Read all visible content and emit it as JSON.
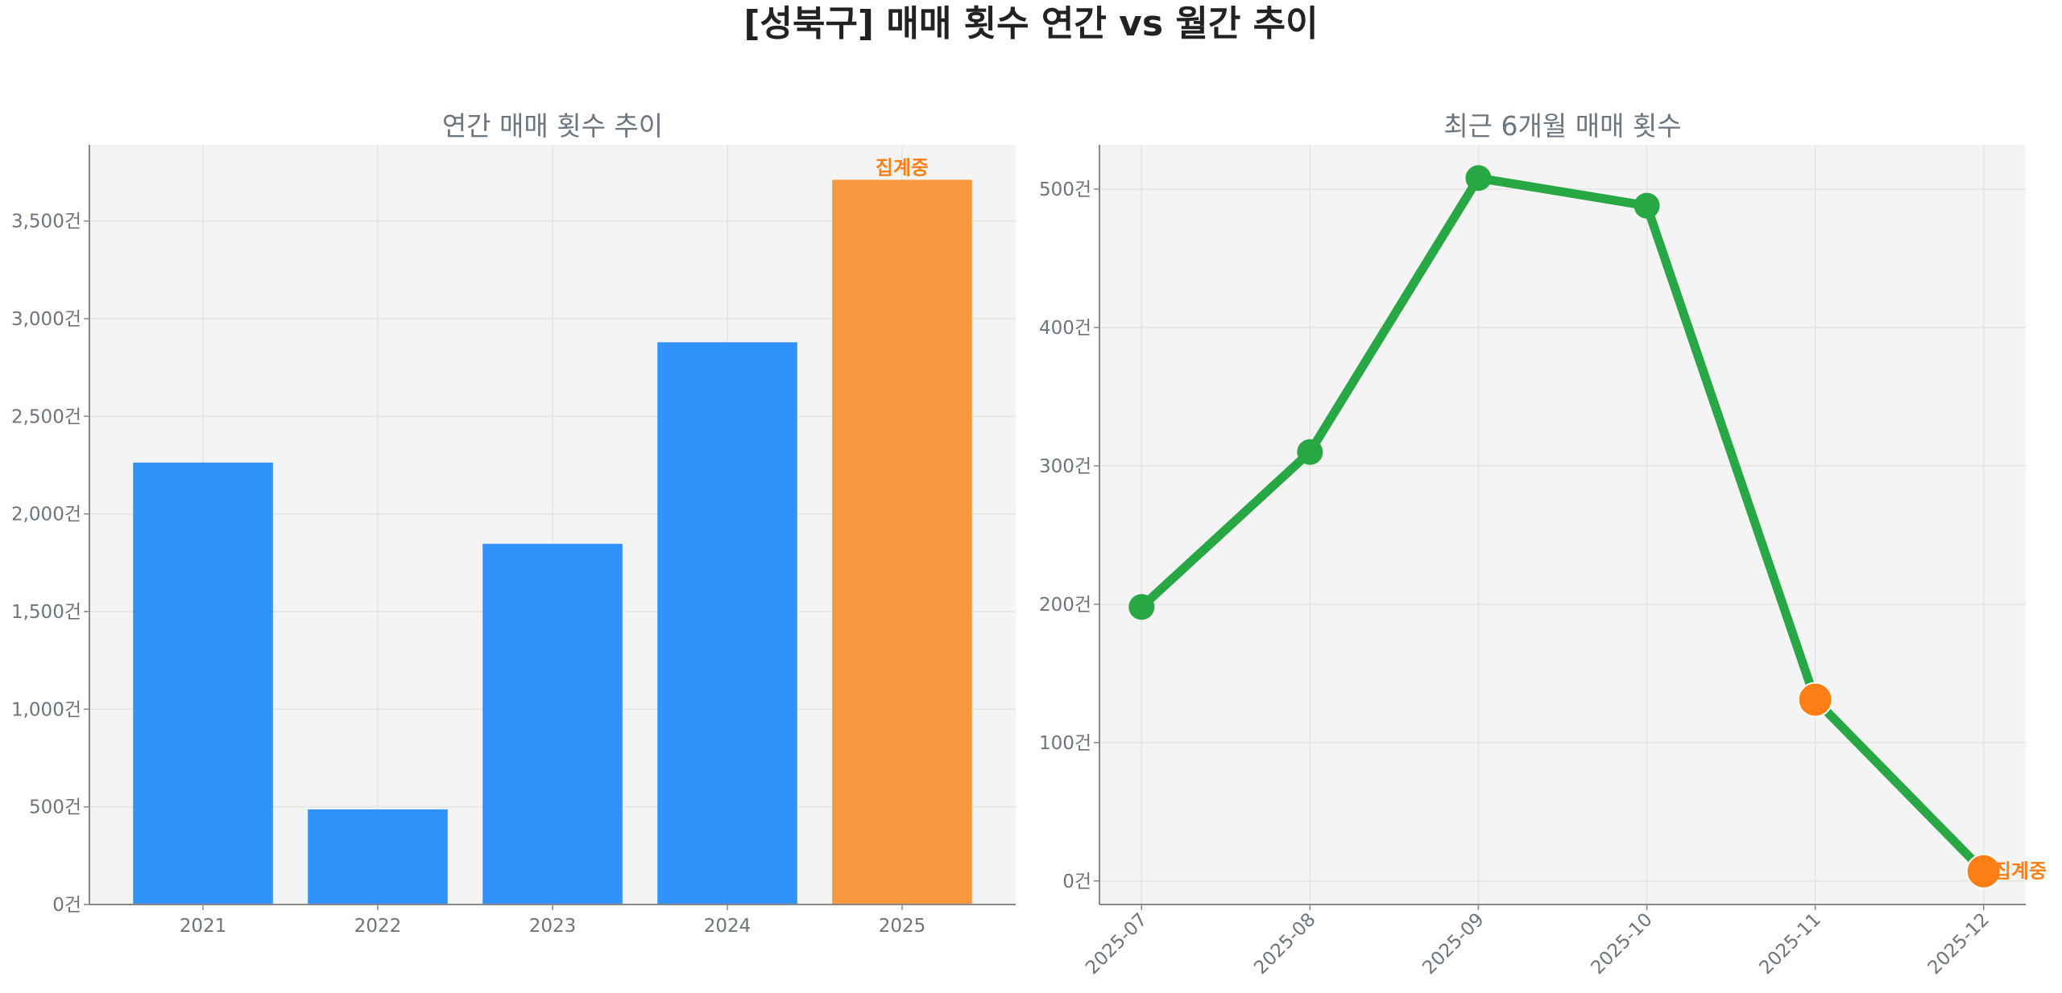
{
  "title": "[성북구] 매매 횟수 연간 vs 월간 추이",
  "chart_data": [
    {
      "type": "bar",
      "title": "연간 매매 횟수 추이",
      "categories": [
        "2021",
        "2022",
        "2023",
        "2024",
        "2025"
      ],
      "values": [
        2263,
        487,
        1847,
        2879,
        3711
      ],
      "colors": [
        "#3093fa",
        "#3093fa",
        "#3093fa",
        "#3093fa",
        "#f9973f"
      ],
      "annotations": [
        {
          "category": "2025",
          "text": "집계중",
          "color": "#fd7e14"
        }
      ],
      "ylim": [
        0,
        3890
      ],
      "yticks": [
        0,
        500,
        1000,
        1500,
        2000,
        2500,
        3000,
        3500
      ],
      "ytick_labels": [
        "0건",
        "500건",
        "1,000건",
        "1,500건",
        "2,000건",
        "2,500건",
        "3,000건",
        "3,500건"
      ],
      "grid": true,
      "xlabel": "",
      "ylabel": ""
    },
    {
      "type": "line",
      "title": "최근 6개월 매매 횟수",
      "categories": [
        "2025-07",
        "2025-08",
        "2025-09",
        "2025-10",
        "2025-11",
        "2025-12"
      ],
      "values": [
        198,
        310,
        508,
        488,
        131,
        7
      ],
      "line_color": "#28a745",
      "marker_colors": [
        "#28a745",
        "#28a745",
        "#28a745",
        "#28a745",
        "#fd7e14",
        "#fd7e14"
      ],
      "annotations": [
        {
          "category": "2025-12",
          "text": "집계중",
          "color": "#fd7e14"
        }
      ],
      "ylim": [
        -17,
        532
      ],
      "yticks": [
        0,
        100,
        200,
        300,
        400,
        500
      ],
      "ytick_labels": [
        "0건",
        "100건",
        "200건",
        "300건",
        "400건",
        "500건"
      ],
      "grid": true,
      "xtick_rotation": 45,
      "xlabel": "",
      "ylabel": ""
    }
  ]
}
